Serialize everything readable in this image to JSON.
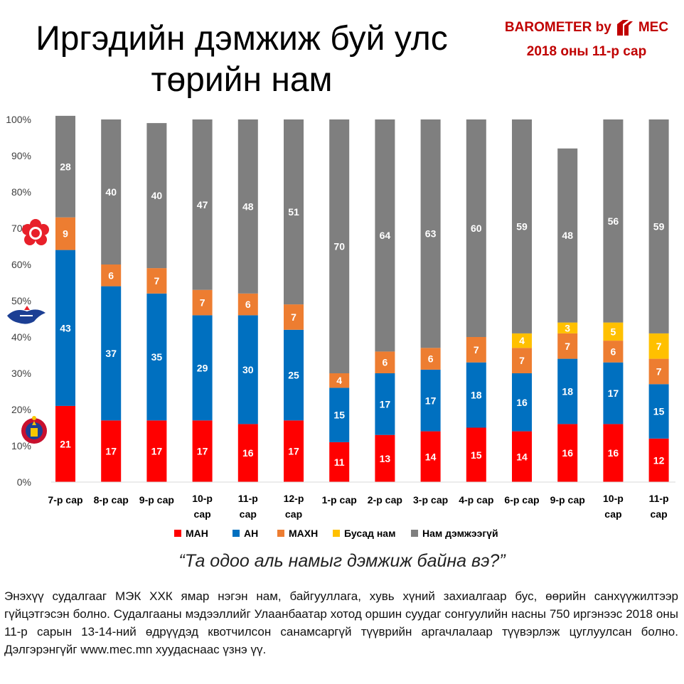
{
  "title_line1": "Иргэдийн дэмжиж буй улс",
  "title_line2": "төрийн нам",
  "brand": {
    "text": "BAROMETER by",
    "name": "MEC",
    "date": "2018 оны 11-р сар",
    "color": "#c00000"
  },
  "question": "“Та одоо аль намыг дэмжиж байна вэ?”",
  "footnote": "Энэхүү судалгааг МЭК ХХК ямар нэгэн нам, байгууллага, хувь хүний захиалгаар бус, өөрийн санхүүжилтээр гүйцэтгэсэн болно. Судалгааны мэдээллийг Улаанбаатар хотод оршин суудаг сонгуулийн насны 750 иргэнээс 2018 оны 11-р сарын 13-14-ний өдрүүдэд квотчилсон санамсаргүй түүврийн аргачлалаар түүвэрлэж цуглуулсан болно. Дэлгэрэнгүйг www.mec.mn хуудаснаас үзнэ үү.",
  "chart_data": {
    "type": "bar",
    "stacked": true,
    "categories": [
      "7-р сар",
      "8-р сар",
      "9-р сар",
      "10-р сар",
      "11-р сар",
      "12-р сар",
      "1-р сар",
      "2-р сар",
      "3-р сар",
      "4-р сар",
      "6-р сар",
      "9-р сар",
      "10-р сар",
      "11-р сар"
    ],
    "yticks": [
      "0%",
      "10%",
      "20%",
      "30%",
      "40%",
      "50%",
      "60%",
      "70%",
      "80%",
      "90%",
      "100%"
    ],
    "ylim": [
      0,
      100
    ],
    "legend_position": "bottom",
    "grid": false,
    "series": [
      {
        "name": "МАН",
        "color": "#ff0000",
        "values": [
          21,
          17,
          17,
          17,
          16,
          17,
          11,
          13,
          14,
          15,
          14,
          16,
          16,
          12
        ]
      },
      {
        "name": "АН",
        "color": "#0070c0",
        "values": [
          43,
          37,
          35,
          29,
          30,
          25,
          15,
          17,
          17,
          18,
          16,
          18,
          17,
          15
        ]
      },
      {
        "name": "МАХН",
        "color": "#ed7d31",
        "values": [
          9,
          6,
          7,
          7,
          6,
          7,
          4,
          6,
          6,
          7,
          7,
          7,
          6,
          7
        ]
      },
      {
        "name": "Бусад нам",
        "color": "#ffc000",
        "values": [
          null,
          null,
          null,
          null,
          null,
          null,
          null,
          null,
          null,
          null,
          4,
          3,
          5,
          7
        ]
      },
      {
        "name": "Нам дэмжээгүй",
        "color": "#7f7f7f",
        "values": [
          28,
          40,
          40,
          47,
          48,
          51,
          70,
          64,
          63,
          60,
          59,
          48,
          56,
          59
        ]
      }
    ]
  }
}
